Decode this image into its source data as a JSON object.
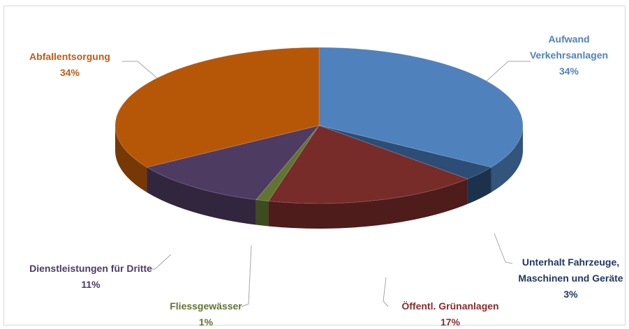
{
  "chart_data": {
    "type": "pie3d",
    "categories": [
      "Aufwand Verkehrsanlagen",
      "Unterhalt Fahrzeuge, Maschinen und Geräte",
      "Öffentl. Grünanlagen",
      "Fliessgewässer",
      "Dienstleistungen für Dritte",
      "Abfallentsorgung"
    ],
    "values": [
      34,
      3,
      17,
      1,
      11,
      34
    ],
    "value_labels": [
      "34%",
      "3%",
      "17%",
      "1%",
      "11%",
      "34%"
    ],
    "colors": [
      "#4f81bd",
      "#2c4d75",
      "#772c2a",
      "#5f7530",
      "#4d3b62",
      "#b65708"
    ]
  }
}
